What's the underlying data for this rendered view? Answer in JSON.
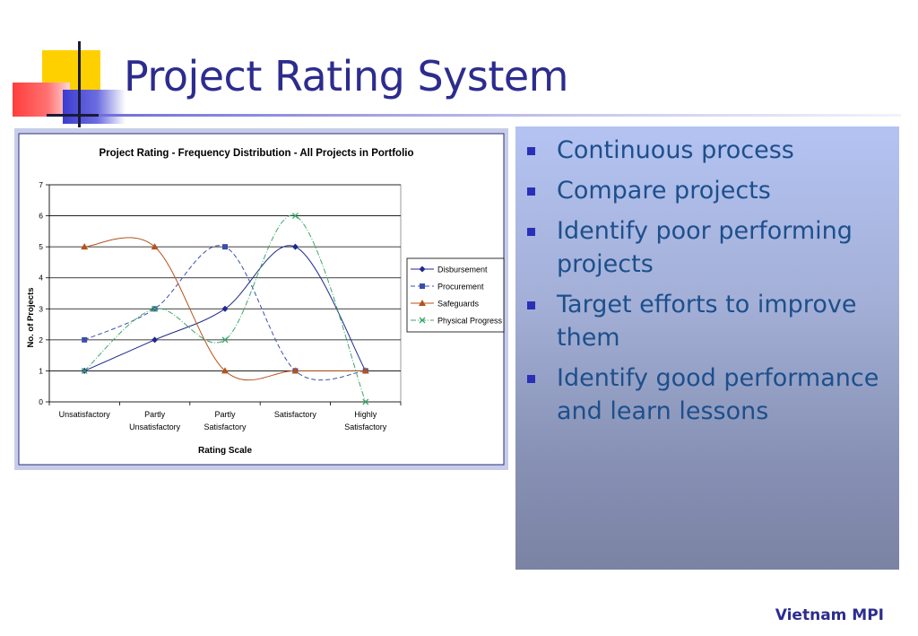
{
  "slide": {
    "title": "Project Rating System",
    "footer": "Vietnam MPI"
  },
  "bullets": [
    "Continuous process",
    "Compare projects",
    "Identify poor performing projects",
    "Target efforts to improve them",
    "Identify good performance and learn lessons"
  ],
  "chart_data": {
    "type": "line",
    "title": "Project Rating - Frequency Distribution - All Projects in Portfolio",
    "xlabel": "Rating Scale",
    "ylabel": "No. of Projects",
    "categories": [
      "Unsatisfactory",
      "Partly Unsatisfactory",
      "Partly Satisfactory",
      "Satisfactory",
      "Highly Satisfactory"
    ],
    "ylim": [
      0,
      7
    ],
    "yticks": [
      0,
      1,
      2,
      3,
      4,
      5,
      6,
      7
    ],
    "grid": true,
    "legend": "right",
    "series": [
      {
        "name": "Disbursement",
        "values": [
          1,
          2,
          3,
          5,
          1
        ],
        "color": "#1f2a8c",
        "marker": "diamond",
        "dash": "solid"
      },
      {
        "name": "Procurement",
        "values": [
          2,
          3,
          5,
          1,
          1
        ],
        "color": "#3a4fa8",
        "marker": "square",
        "dash": "dashed"
      },
      {
        "name": "Safeguards",
        "values": [
          5,
          5,
          1,
          1,
          1
        ],
        "color": "#b5531a",
        "marker": "triangle",
        "dash": "solid"
      },
      {
        "name": "Physical Progress",
        "values": [
          1,
          3,
          2,
          6,
          0
        ],
        "color": "#3aa86a",
        "marker": "x",
        "dash": "dashdot"
      }
    ]
  }
}
